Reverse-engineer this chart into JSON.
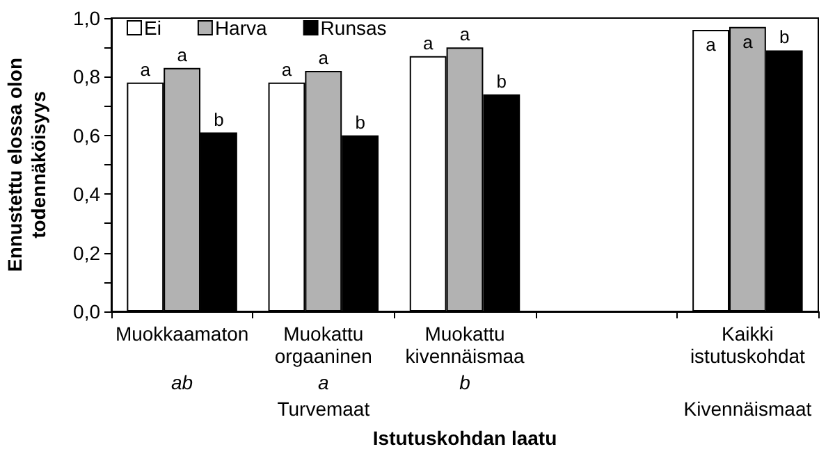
{
  "chart_data": {
    "type": "bar",
    "categories": [
      "Muokkaamaton",
      "Muokattu orgaaninen",
      "Muokattu kivennäismaa",
      null,
      "Kaikki istutuskohdat"
    ],
    "series": [
      {
        "name": "Ei",
        "color": "#ffffff",
        "values": [
          0.78,
          0.78,
          0.87,
          null,
          0.96
        ],
        "value_labels": [
          "a",
          "a",
          "a",
          null,
          "a"
        ]
      },
      {
        "name": "Harva",
        "color": "#b2b2b2",
        "values": [
          0.83,
          0.82,
          0.9,
          null,
          0.97
        ],
        "value_labels": [
          "a",
          "a",
          "a",
          null,
          "a"
        ]
      },
      {
        "name": "Runsas",
        "color": "#000000",
        "values": [
          0.61,
          0.6,
          0.74,
          null,
          0.89
        ],
        "value_labels": [
          "b",
          "b",
          "b",
          null,
          "b"
        ]
      }
    ],
    "xlabel": "Istutuskohdan laatu",
    "ylabel": "Ennustettu elossa olon todennäköisyys",
    "annotations": [
      "ab",
      "a",
      "b",
      "Turvemaat",
      "Kivennäismaat"
    ],
    "ylim": [
      0,
      1
    ],
    "yticks": [
      {
        "value": 0,
        "label": "0,0"
      },
      {
        "value": 0.1,
        "label": null
      },
      {
        "value": 0.2,
        "label": "0,2"
      },
      {
        "value": 0.3,
        "label": null
      },
      {
        "value": 0.4,
        "label": "0,4"
      },
      {
        "value": 0.5,
        "label": null
      },
      {
        "value": 0.6,
        "label": "0,6"
      },
      {
        "value": 0.7,
        "label": null
      },
      {
        "value": 0.8,
        "label": "0,8"
      },
      {
        "value": 0.9,
        "label": null
      },
      {
        "value": 1,
        "label": "1,0"
      }
    ],
    "grid": false,
    "legend": "top left"
  }
}
